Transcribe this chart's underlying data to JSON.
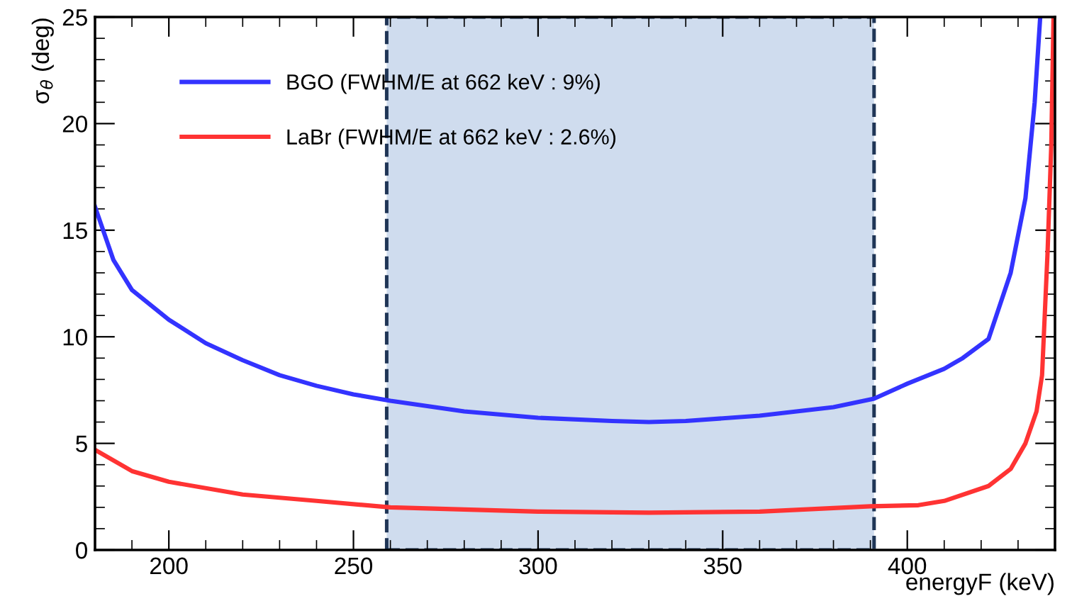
{
  "chart_data": {
    "type": "line",
    "xlabel": "energyF (keV)",
    "ylabel": "σ$_{θ}$ (deg)",
    "xlim": [
      180,
      440
    ],
    "ylim": [
      0,
      25
    ],
    "xticks": [
      200,
      250,
      300,
      350,
      400
    ],
    "yticks": [
      0,
      5,
      10,
      15,
      20,
      25
    ],
    "grid": false,
    "legend": "top left",
    "marker": "none",
    "line_style": "solid",
    "bands": [
      {
        "axis": "x",
        "from": 259,
        "to": 391,
        "color": "#cfdcee"
      }
    ],
    "series": [
      {
        "name": "BGO (FWHM/E at 662 keV : 9%)",
        "color": "#3333ff",
        "x": [
          180,
          185,
          190,
          200,
          210,
          220,
          230,
          240,
          250,
          260,
          280,
          300,
          320,
          330,
          340,
          360,
          380,
          391,
          400,
          410,
          415,
          422,
          428,
          432,
          434.5,
          436
        ],
        "values": [
          16.1,
          13.6,
          12.2,
          10.8,
          9.7,
          8.9,
          8.2,
          7.7,
          7.3,
          7.0,
          6.5,
          6.2,
          6.05,
          6.0,
          6.05,
          6.3,
          6.7,
          7.1,
          7.8,
          8.5,
          9.0,
          9.9,
          13.0,
          16.5,
          21.0,
          25.0
        ]
      },
      {
        "name": "LaBr (FWHM/E at 662 keV : 2.6%)",
        "color": "#ff3333",
        "x": [
          180,
          190,
          200,
          220,
          240,
          260,
          300,
          330,
          360,
          390,
          403,
          410,
          422,
          428,
          432,
          435,
          436.5,
          438,
          439,
          439.6
        ],
        "values": [
          4.7,
          3.7,
          3.2,
          2.6,
          2.3,
          2.0,
          1.8,
          1.75,
          1.8,
          2.05,
          2.1,
          2.3,
          3.0,
          3.8,
          5.0,
          6.5,
          8.2,
          14.0,
          19.0,
          25.0
        ]
      }
    ]
  }
}
